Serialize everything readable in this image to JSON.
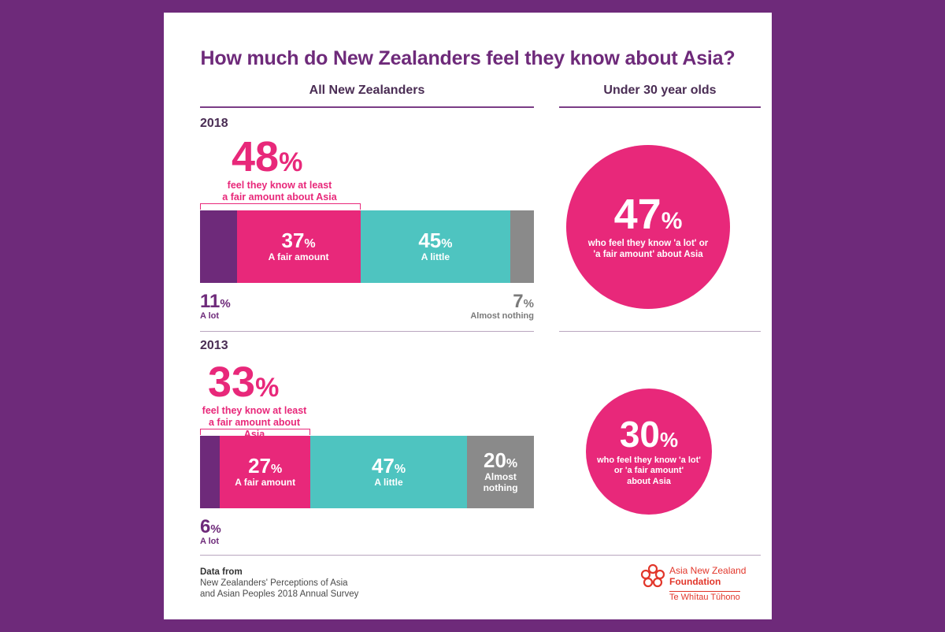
{
  "title": "How much do New Zealanders feel they know about Asia?",
  "columns": {
    "left": "All New Zealanders",
    "right": "Under 30 year olds"
  },
  "colors": {
    "background": "#6e2a7a",
    "a_lot": "#6e2a7a",
    "fair": "#e8287a",
    "little": "#4ec4c0",
    "nothing": "#8a8a8a"
  },
  "chart_data": [
    {
      "type": "bar",
      "year": "2018",
      "headline": {
        "value": "48",
        "unit": "%",
        "caption": [
          "feel they know at least",
          "a fair amount about Asia"
        ]
      },
      "series": [
        {
          "name": "A lot",
          "value": 11,
          "label": "11"
        },
        {
          "name": "A fair amount",
          "value": 37,
          "label": "37"
        },
        {
          "name": "A little",
          "value": 45,
          "label": "45"
        },
        {
          "name": "Almost nothing",
          "value": 7,
          "label": "7"
        }
      ],
      "under30": {
        "value": "47",
        "unit": "%",
        "caption": [
          "who feel they know 'a lot' or",
          "'a fair amount' about Asia"
        ]
      }
    },
    {
      "type": "bar",
      "year": "2013",
      "headline": {
        "value": "33",
        "unit": "%",
        "caption": [
          "feel they know at least",
          "a fair amount about Asia"
        ]
      },
      "series": [
        {
          "name": "A lot",
          "value": 6,
          "label": "6"
        },
        {
          "name": "A fair amount",
          "value": 27,
          "label": "27"
        },
        {
          "name": "A little",
          "value": 47,
          "label": "47"
        },
        {
          "name": "Almost nothing",
          "value": 20,
          "label": "20"
        }
      ],
      "under30": {
        "value": "30",
        "unit": "%",
        "caption": [
          "who feel they know 'a lot'",
          "or 'a fair amount'",
          "about Asia"
        ]
      }
    }
  ],
  "labels": {
    "a_lot": "A lot",
    "fair": "A fair amount",
    "little": "A little",
    "nothing": "Almost nothing",
    "nothing_l1": "Almost",
    "nothing_l2": "nothing",
    "pct": "%"
  },
  "source": {
    "heading": "Data from",
    "line1": "New Zealanders' Perceptions of Asia",
    "line2": "and Asian Peoples 2018 Annual Survey"
  },
  "logo": {
    "line1": "Asia New Zealand",
    "line2": "Foundation",
    "line3": "Te Whītau Tūhono"
  }
}
